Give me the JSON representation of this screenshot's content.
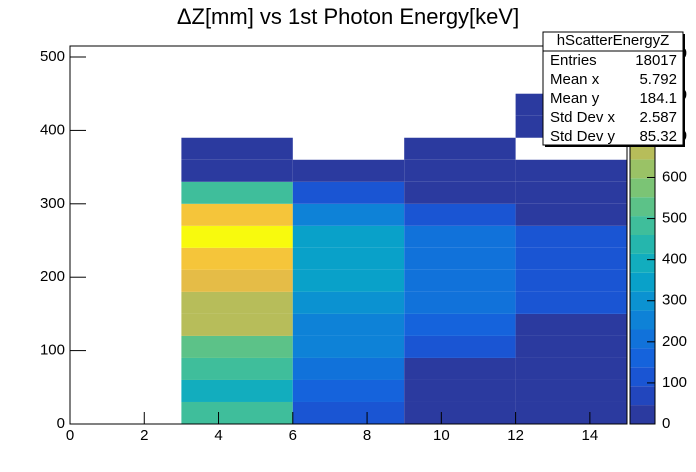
{
  "chart_data": {
    "type": "heatmap",
    "title": "ΔZ[mm] vs 1st Photon Energy[keV]",
    "x_bins": [
      0,
      3,
      6,
      9,
      12,
      15
    ],
    "y_bins": [
      0,
      30,
      60,
      90,
      120,
      150,
      180,
      210,
      240,
      270,
      300,
      330,
      360,
      390,
      420,
      450
    ],
    "z": [
      [
        null,
        500,
        120,
        40,
        40
      ],
      [
        null,
        380,
        160,
        40,
        40
      ],
      [
        null,
        500,
        200,
        40,
        40
      ],
      [
        null,
        520,
        230,
        100,
        40
      ],
      [
        null,
        680,
        270,
        150,
        40
      ],
      [
        null,
        680,
        300,
        200,
        100
      ],
      [
        null,
        760,
        330,
        200,
        120
      ],
      [
        null,
        810,
        330,
        200,
        120
      ],
      [
        null,
        900,
        330,
        200,
        120
      ],
      [
        null,
        820,
        250,
        120,
        40
      ],
      [
        null,
        480,
        120,
        40,
        40
      ],
      [
        null,
        40,
        40,
        40,
        40
      ],
      [
        null,
        40,
        null,
        40,
        null
      ],
      [
        null,
        null,
        null,
        null,
        40
      ],
      [
        null,
        null,
        null,
        null,
        40
      ]
    ],
    "xlim": [
      0,
      15
    ],
    "xticks": [
      0,
      2,
      4,
      6,
      8,
      10,
      12,
      14
    ],
    "ylim": [
      0,
      515
    ],
    "yticks": [
      0,
      100,
      200,
      300,
      400,
      500
    ],
    "zlim": [
      0,
      920
    ],
    "zticks": [
      0,
      100,
      200,
      300,
      400,
      500,
      600,
      700,
      800,
      900
    ],
    "palette": [
      "#2b3a9f",
      "#2246bd",
      "#1a55d3",
      "#1563dc",
      "#1172da",
      "#0e82d7",
      "#0b92d1",
      "#09a1c9",
      "#12adbe",
      "#25b6ad",
      "#3fbe9b",
      "#5cc288",
      "#7bc475",
      "#9ac266",
      "#b7bd5a",
      "#d0ba53",
      "#e5bc47",
      "#f5c53a",
      "#fad72c",
      "#f8fa0d"
    ],
    "stats": {
      "title": "hScatterEnergyZ",
      "rows": [
        [
          "Entries",
          18017
        ],
        [
          "Mean x",
          5.792
        ],
        [
          "Mean y",
          184.1
        ],
        [
          "Std Dev x",
          2.587
        ],
        [
          "Std Dev y",
          85.32
        ]
      ]
    }
  }
}
